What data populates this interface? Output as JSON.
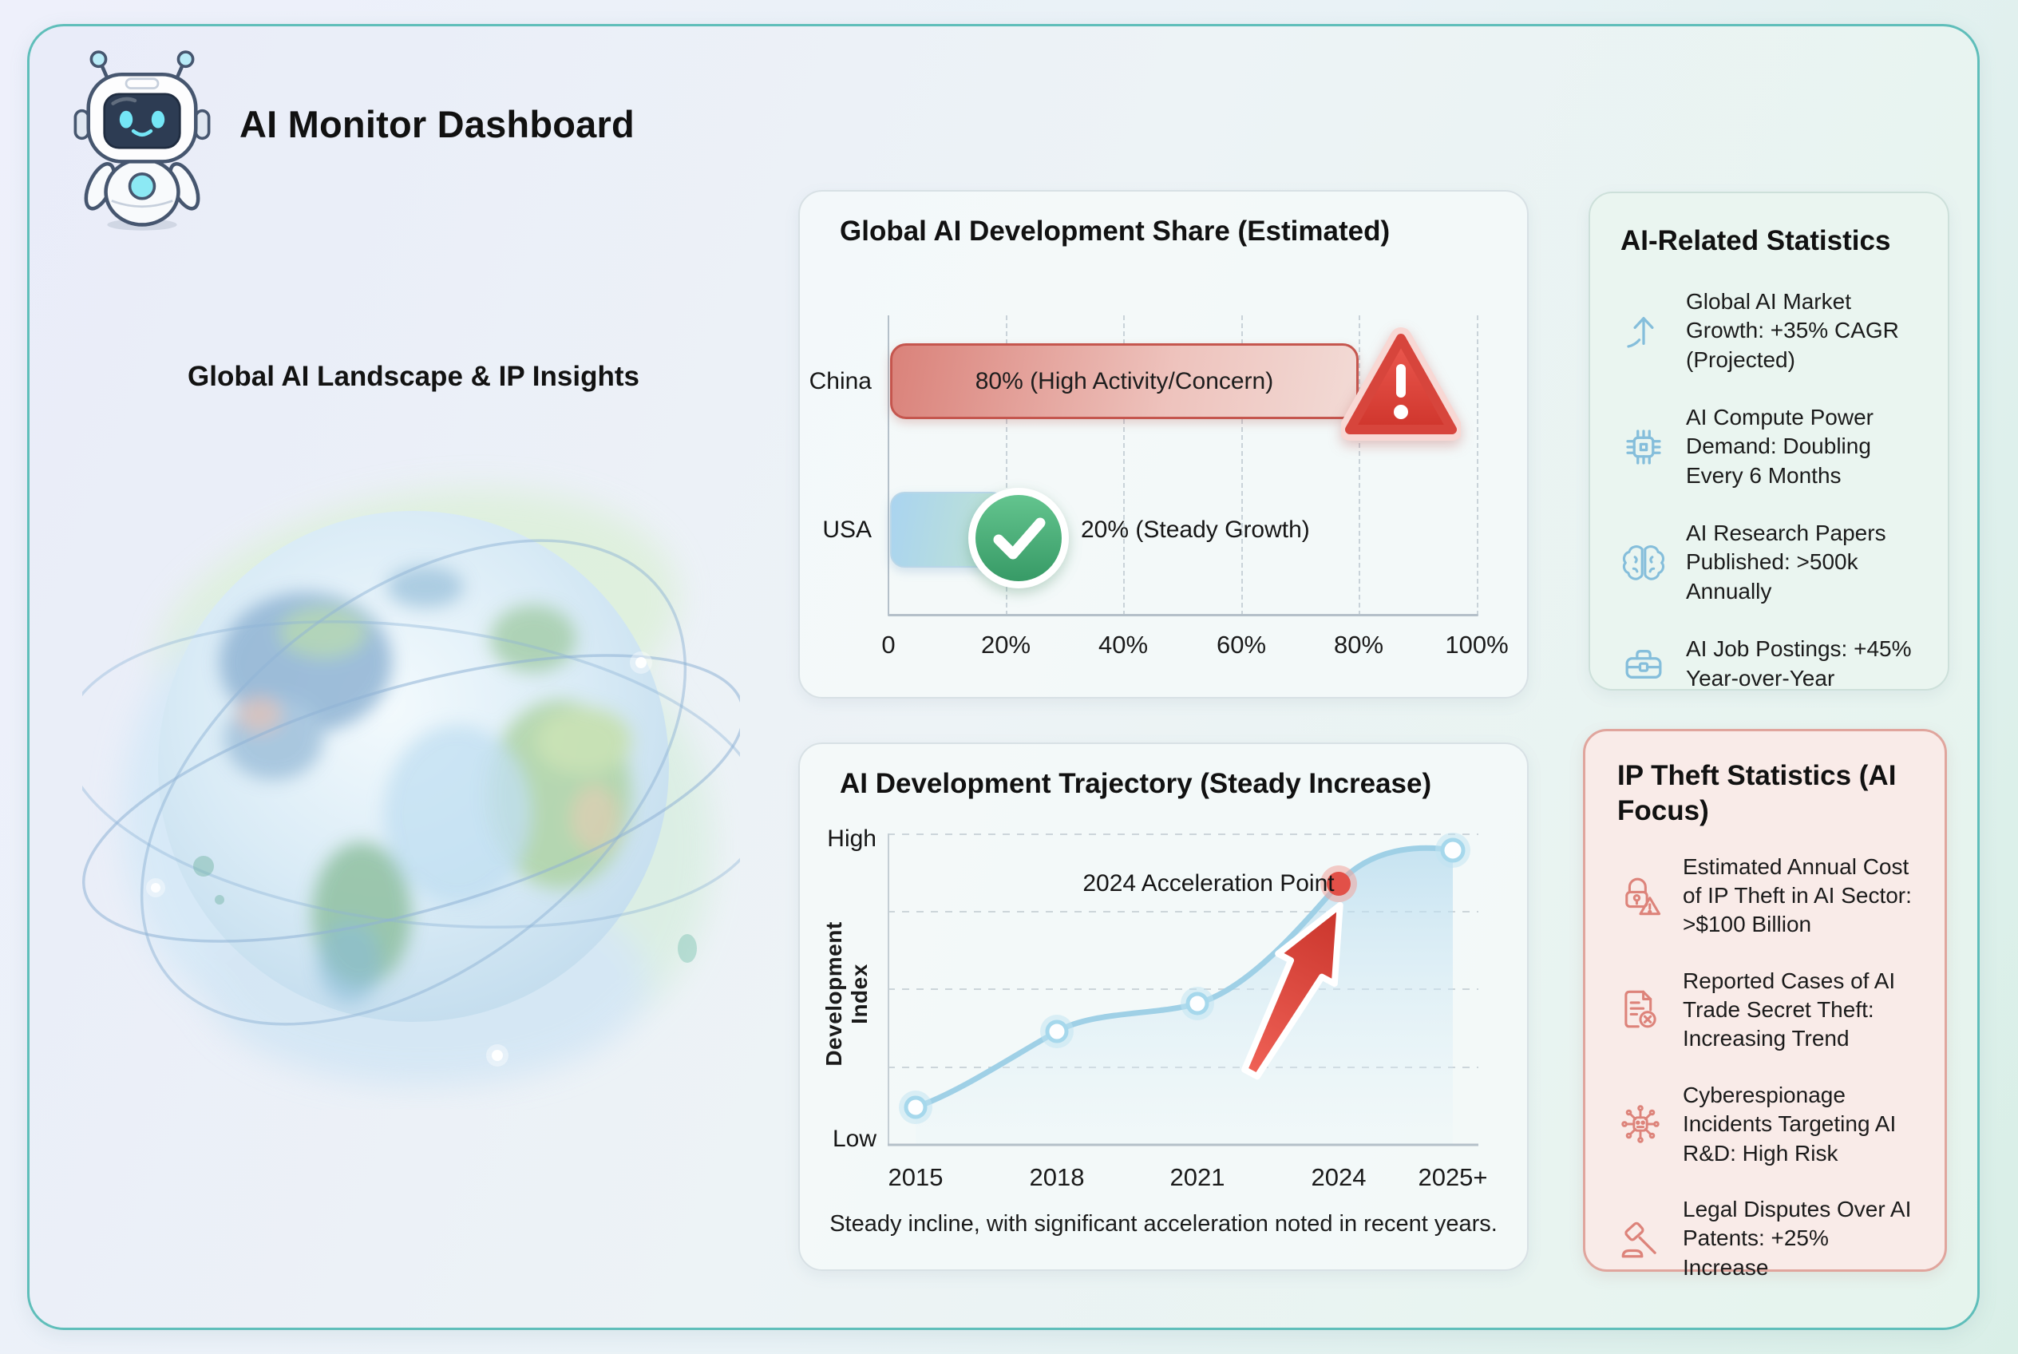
{
  "app": {
    "title": "AI Monitor Dashboard",
    "logo": "robot-mascot"
  },
  "left_panel": {
    "heading": "Global AI Landscape & IP Insights",
    "illustration": "watercolor-globe-with-orbit-rings"
  },
  "share_chart": {
    "title": "Global AI Development Share (Estimated)",
    "x_ticks": [
      "0",
      "20%",
      "40%",
      "60%",
      "80%",
      "100%"
    ],
    "bars": [
      {
        "label": "China",
        "text": "80% (High Activity/Concern)",
        "value_pct": 80,
        "status": "warning"
      },
      {
        "label": "USA",
        "text": "20% (Steady Growth)",
        "value_pct": 20,
        "status": "success"
      }
    ]
  },
  "stats_card": {
    "title": "AI-Related Statistics",
    "icon_color": "#85bedb",
    "items": [
      {
        "icon": "trend-up-icon",
        "text": "Global AI Market Growth: +35% CAGR (Projected)"
      },
      {
        "icon": "chip-icon",
        "text": "AI Compute Power Demand: Doubling Every 6 Months"
      },
      {
        "icon": "brain-icon",
        "text": "AI Research Papers Published: >500k Annually"
      },
      {
        "icon": "briefcase-icon",
        "text": "AI Job Postings: +45% Year-over-Year"
      }
    ]
  },
  "trajectory_chart": {
    "title": "AI Development Trajectory (Steady Increase)",
    "ylabel": "Development Index",
    "y_axis_top_label": "High",
    "y_axis_bottom_label": "Low",
    "x_ticks": [
      "2015",
      "2018",
      "2021",
      "2024",
      "2025+"
    ],
    "annotation": "2024 Acceleration Point",
    "caption": "Steady incline, with significant acceleration noted in recent years."
  },
  "ip_theft_card": {
    "title": "IP Theft Statistics (AI Focus)",
    "icon_color": "#dd837a",
    "items": [
      {
        "icon": "lock-alert-icon",
        "text": "Estimated Annual Cost of IP Theft in AI Sector: >$100 Billion"
      },
      {
        "icon": "document-reject-icon",
        "text": "Reported Cases of AI Trade Secret Theft: Increasing Trend"
      },
      {
        "icon": "cyber-espionage-icon",
        "text": "Cyberespionage Incidents Targeting AI R&D: High Risk"
      },
      {
        "icon": "gavel-icon",
        "text": "Legal Disputes Over AI Patents: +25% Increase"
      }
    ]
  },
  "chart_data": [
    {
      "type": "bar",
      "orientation": "horizontal",
      "title": "Global AI Development Share (Estimated)",
      "categories": [
        "China",
        "USA"
      ],
      "values": [
        80,
        20
      ],
      "value_labels": [
        "80% (High Activity/Concern)",
        "20% (Steady Growth)"
      ],
      "xlabel": "",
      "ylabel": "",
      "xlim": [
        0,
        100
      ],
      "x_ticks": [
        "0",
        "20%",
        "40%",
        "60%",
        "80%",
        "100%"
      ],
      "grid": "vertical-dashed",
      "annotations": [
        "warning-triangle on China bar end",
        "green-check on USA bar end"
      ]
    },
    {
      "type": "line",
      "title": "AI Development Trajectory (Steady Increase)",
      "x": [
        "2015",
        "2018",
        "2021",
        "2024",
        "2025+"
      ],
      "series": [
        {
          "name": "Development Index",
          "values": [
            0.12,
            0.36,
            0.45,
            0.84,
            0.95
          ]
        }
      ],
      "ylabel": "Development Index",
      "y_ticks": [
        "Low",
        "High"
      ],
      "ylim": [
        0,
        1
      ],
      "area_fill": true,
      "grid": "horizontal-dashed",
      "highlight_point": {
        "x": "2024",
        "value": 0.84,
        "label": "2024 Acceleration Point",
        "color": "#e25048"
      },
      "caption": "Steady incline, with significant acceleration noted in recent years."
    }
  ],
  "colors": {
    "frame_border": "#5fbeba",
    "background_left": "#e9ecf9",
    "background_right": "#e5f4ed",
    "card_bg": "#f4f9f9",
    "stats_card_bg": "#eaf5f0",
    "ip_card_bg": "#f9ebe8",
    "ip_card_border": "#e0a59d",
    "china_bar_start": "#da827a",
    "china_bar_end": "#f2dad5",
    "china_bar_border": "#c5564e",
    "usa_bar_start": "#aad4f0",
    "usa_bar_end": "#bfe3d2",
    "warning_red": "#e0443b",
    "success_green": "#41ab72",
    "line_blue": "#9fd0e6",
    "highlight_red": "#e25048",
    "stat_icon_blue": "#85bedb",
    "ip_icon_red": "#dd837a",
    "text": "#141414"
  }
}
